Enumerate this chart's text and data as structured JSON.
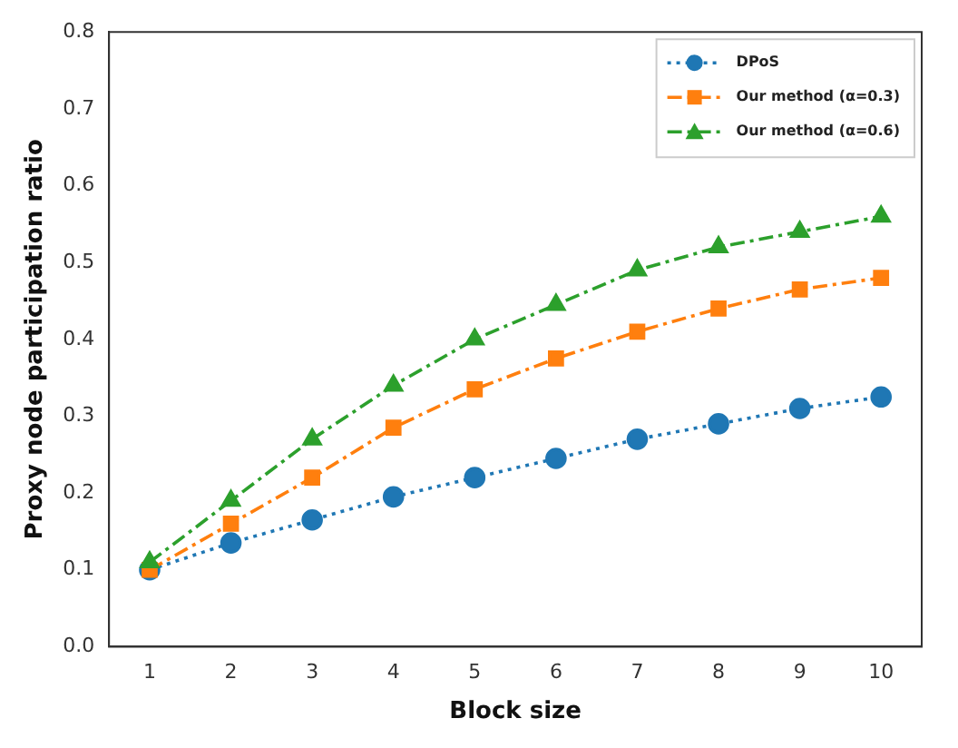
{
  "chart_data": {
    "type": "line",
    "xlabel": "Block size",
    "ylabel": "Proxy node participation ratio",
    "categories": [
      "1",
      "2",
      "3",
      "4",
      "5",
      "6",
      "7",
      "8",
      "9",
      "10"
    ],
    "series": [
      {
        "name": "DPoS",
        "color": "#1f77b4",
        "marker": "circle",
        "line_style": "dotted",
        "values": [
          0.1,
          0.135,
          0.165,
          0.195,
          0.22,
          0.245,
          0.27,
          0.29,
          0.31,
          0.325
        ]
      },
      {
        "name": "Our method (α=0.3)",
        "color": "#ff7f0e",
        "marker": "square",
        "line_style": "dashed",
        "values": [
          0.1,
          0.16,
          0.22,
          0.285,
          0.335,
          0.375,
          0.41,
          0.44,
          0.465,
          0.48
        ]
      },
      {
        "name": "Our method (α=0.6)",
        "color": "#2ca02c",
        "marker": "triangle",
        "line_style": "dashed",
        "values": [
          0.11,
          0.19,
          0.27,
          0.34,
          0.4,
          0.445,
          0.49,
          0.52,
          0.54,
          0.56
        ]
      }
    ],
    "ylim": [
      0,
      0.8
    ],
    "yticks": [
      {
        "value": 0,
        "label": "0.0"
      },
      {
        "value": 0.1,
        "label": "0.1"
      },
      {
        "value": 0.2,
        "label": "0.2"
      },
      {
        "value": 0.3,
        "label": "0.3"
      },
      {
        "value": 0.4,
        "label": "0.4"
      },
      {
        "value": 0.5,
        "label": "0.5"
      },
      {
        "value": 0.6,
        "label": "0.6"
      },
      {
        "value": 0.7,
        "label": "0.7"
      },
      {
        "value": 0.8,
        "label": "0.8"
      }
    ],
    "grid": false,
    "legend": "top right"
  }
}
